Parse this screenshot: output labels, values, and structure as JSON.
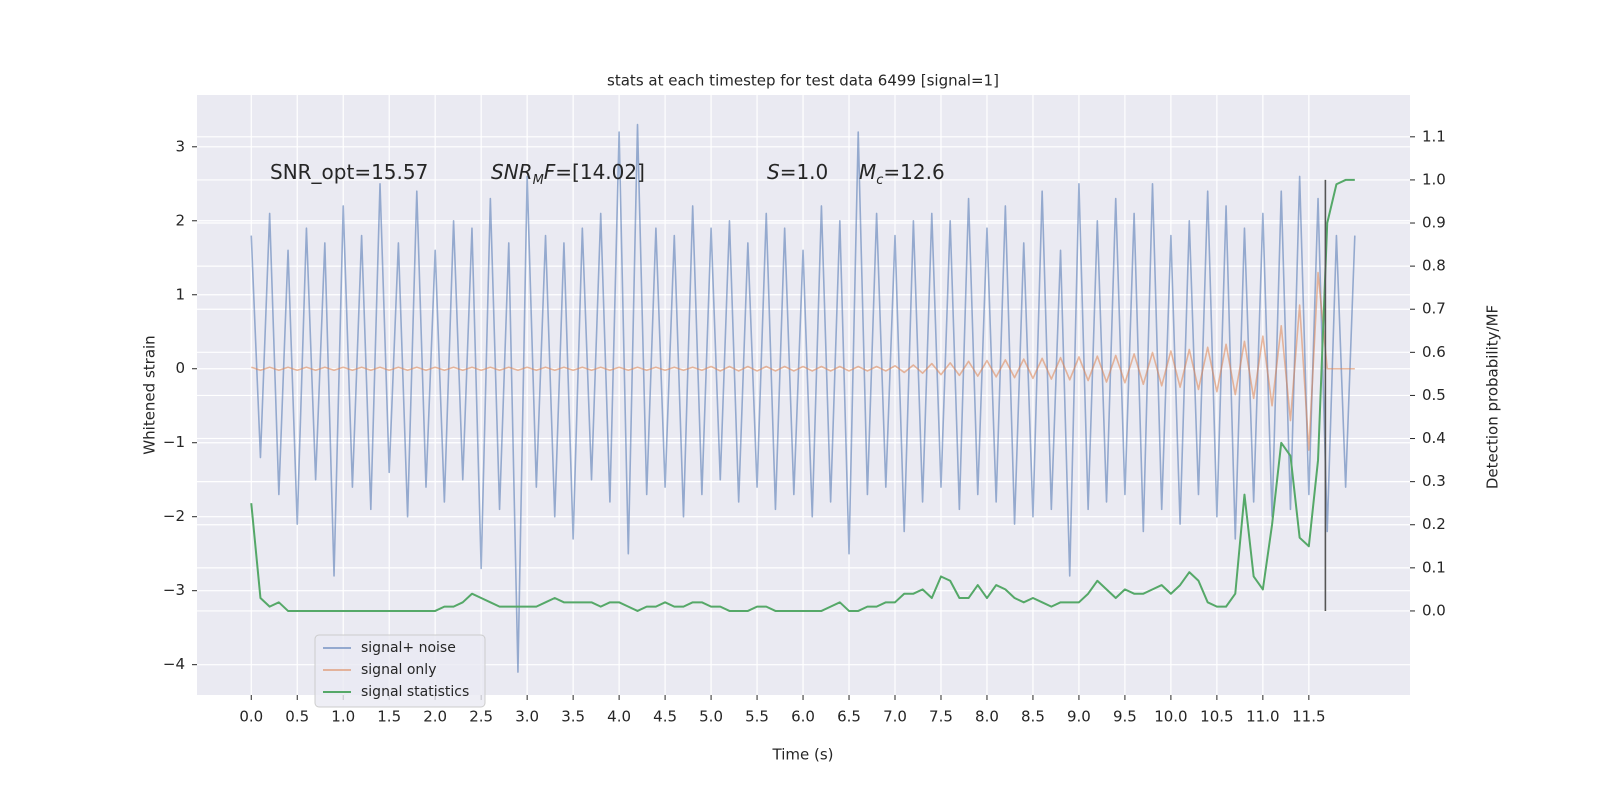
{
  "chart_data": {
    "type": "line",
    "title": "stats at each timestep for test data 6499 [signal=1]",
    "x_label": "Time (s)",
    "y_label": "Whitened strain",
    "y2_label": "Detection probability/MF",
    "grid": true,
    "legend": "lower left",
    "xlim": [
      -0.59,
      12.6
    ],
    "ylim": [
      -4.41,
      3.7
    ],
    "y2lim": [
      -0.195,
      1.197
    ],
    "xticks": [
      {
        "value": 0,
        "label": "0.0"
      },
      0.5,
      {
        "value": 1,
        "label": "1.0"
      },
      1.5,
      {
        "value": 2,
        "label": "2.0"
      },
      2.5,
      {
        "value": 3,
        "label": "3.0"
      },
      3.5,
      {
        "value": 4,
        "label": "4.0"
      },
      4.5,
      {
        "value": 5,
        "label": "5.0"
      },
      5.5,
      {
        "value": 6,
        "label": "6.0"
      },
      6.5,
      {
        "value": 7,
        "label": "7.0"
      },
      7.5,
      {
        "value": 8,
        "label": "8.0"
      },
      8.5,
      {
        "value": 9,
        "label": "9.0"
      },
      9.5,
      {
        "value": 10,
        "label": "10.0"
      },
      10.5,
      {
        "value": 11,
        "label": "11.0"
      },
      11.5
    ],
    "yticks": [
      {
        "value": -4,
        "label": "−4"
      },
      {
        "value": -3,
        "label": "−3"
      },
      {
        "value": -2,
        "label": "−2"
      },
      {
        "value": -1,
        "label": "−1"
      },
      0,
      1,
      2,
      3
    ],
    "y2ticks": [
      {
        "value": 0,
        "label": "0.0"
      },
      0.1,
      0.2,
      0.3,
      0.4,
      0.5,
      0.6,
      0.7,
      0.8,
      0.9,
      {
        "value": 1,
        "label": "1.0"
      },
      1.1
    ],
    "x": [
      0,
      0.1,
      0.2,
      0.3,
      0.4,
      0.5,
      0.6,
      0.7,
      0.8,
      0.9,
      1,
      1.1,
      1.2,
      1.3,
      1.4,
      1.5,
      1.6,
      1.7,
      1.8,
      1.9,
      2,
      2.1,
      2.2,
      2.3,
      2.4,
      2.5,
      2.6,
      2.7,
      2.8,
      2.9,
      3,
      3.1,
      3.2,
      3.3,
      3.4,
      3.5,
      3.6,
      3.7,
      3.8,
      3.9,
      4,
      4.1,
      4.2,
      4.3,
      4.4,
      4.5,
      4.6,
      4.7,
      4.8,
      4.9,
      5,
      5.1,
      5.2,
      5.3,
      5.4,
      5.5,
      5.6,
      5.7,
      5.8,
      5.9,
      6,
      6.1,
      6.2,
      6.3,
      6.4,
      6.5,
      6.6,
      6.7,
      6.8,
      6.9,
      7,
      7.1,
      7.2,
      7.3,
      7.4,
      7.5,
      7.6,
      7.7,
      7.8,
      7.9,
      8,
      8.1,
      8.2,
      8.3,
      8.4,
      8.5,
      8.6,
      8.7,
      8.8,
      8.9,
      9,
      9.1,
      9.2,
      9.3,
      9.4,
      9.5,
      9.6,
      9.7,
      9.8,
      9.9,
      10,
      10.1,
      10.2,
      10.3,
      10.4,
      10.5,
      10.6,
      10.7,
      10.8,
      10.9,
      11,
      11.1,
      11.2,
      11.3,
      11.4,
      11.5,
      11.6,
      11.7,
      11.8,
      11.9,
      12
    ],
    "series": [
      {
        "name": "signal+ noise",
        "color": "#4c72b0",
        "values": [
          1.8,
          -1.2,
          2.1,
          -1.7,
          1.6,
          -2.1,
          1.9,
          -1.5,
          1.7,
          -2.8,
          2.2,
          -1.6,
          1.8,
          -1.9,
          2.5,
          -1.4,
          1.7,
          -2.0,
          2.4,
          -1.6,
          1.6,
          -1.8,
          2.0,
          -1.5,
          1.9,
          -2.7,
          2.3,
          -1.9,
          1.7,
          -4.1,
          2.6,
          -1.6,
          1.8,
          -2.0,
          1.7,
          -2.3,
          1.9,
          -1.5,
          2.1,
          -1.8,
          3.2,
          -2.5,
          3.3,
          -1.7,
          1.9,
          -1.6,
          1.8,
          -2.0,
          2.2,
          -1.7,
          1.9,
          -1.5,
          2.0,
          -1.8,
          1.7,
          -1.6,
          2.1,
          -1.9,
          1.9,
          -1.7,
          1.6,
          -2.0,
          2.2,
          -1.8,
          2.0,
          -2.5,
          3.2,
          -1.7,
          2.1,
          -1.6,
          1.8,
          -2.2,
          2.0,
          -1.8,
          2.1,
          -1.6,
          2.0,
          -1.9,
          2.3,
          -1.7,
          1.9,
          -1.8,
          2.2,
          -2.1,
          1.7,
          -2.0,
          2.4,
          -1.9,
          1.6,
          -2.8,
          2.5,
          -1.9,
          2.0,
          -1.8,
          2.3,
          -1.7,
          2.1,
          -2.2,
          2.5,
          -1.9,
          1.8,
          -2.1,
          2.0,
          -1.7,
          2.4,
          -2.0,
          2.2,
          -2.3,
          1.9,
          -1.8,
          2.1,
          -2.0,
          2.4,
          -1.9,
          2.6,
          -1.7,
          2.3,
          -2.2,
          1.8,
          -1.6,
          1.8
        ]
      },
      {
        "name": "signal only",
        "color": "#dd8452",
        "values": [
          0.02,
          -0.02,
          0.02,
          -0.02,
          0.02,
          -0.02,
          0.02,
          -0.02,
          0.02,
          -0.02,
          0.02,
          -0.02,
          0.02,
          -0.02,
          0.02,
          -0.02,
          0.02,
          -0.02,
          0.02,
          -0.02,
          0.02,
          -0.02,
          0.02,
          -0.02,
          0.02,
          -0.02,
          0.02,
          -0.02,
          0.02,
          -0.02,
          0.02,
          -0.02,
          0.02,
          -0.02,
          0.02,
          -0.02,
          0.02,
          -0.02,
          0.02,
          -0.02,
          0.02,
          -0.02,
          0.02,
          -0.02,
          0.02,
          -0.02,
          0.02,
          -0.02,
          0.02,
          -0.02,
          0.03,
          -0.03,
          0.03,
          -0.03,
          0.03,
          -0.03,
          0.03,
          -0.03,
          0.03,
          -0.03,
          0.03,
          -0.03,
          0.03,
          -0.03,
          0.03,
          -0.03,
          0.03,
          -0.03,
          0.03,
          -0.03,
          0.04,
          -0.05,
          0.05,
          -0.06,
          0.07,
          -0.08,
          0.08,
          -0.09,
          0.1,
          -0.1,
          0.11,
          -0.11,
          0.12,
          -0.12,
          0.13,
          -0.13,
          0.14,
          -0.14,
          0.15,
          -0.15,
          0.16,
          -0.16,
          0.17,
          -0.18,
          0.18,
          -0.19,
          0.2,
          -0.21,
          0.22,
          -0.23,
          0.24,
          -0.25,
          0.26,
          -0.28,
          0.29,
          -0.31,
          0.33,
          -0.35,
          0.37,
          -0.4,
          0.44,
          -0.5,
          0.58,
          -0.7,
          0.86,
          -1.1,
          1.3,
          0,
          0,
          0,
          0
        ]
      },
      {
        "name": "signal statistics",
        "color": "#55a868",
        "axis": "y2",
        "values": [
          0.25,
          0.03,
          0.01,
          0.02,
          0.0,
          0.0,
          0.0,
          0.0,
          0.0,
          0.0,
          0.0,
          0.0,
          0.0,
          0.0,
          0.0,
          0.0,
          0.0,
          0.0,
          0.0,
          0.0,
          0.0,
          0.01,
          0.01,
          0.02,
          0.04,
          0.03,
          0.02,
          0.01,
          0.01,
          0.01,
          0.01,
          0.01,
          0.02,
          0.03,
          0.02,
          0.02,
          0.02,
          0.02,
          0.01,
          0.02,
          0.02,
          0.01,
          0.0,
          0.01,
          0.01,
          0.02,
          0.01,
          0.01,
          0.02,
          0.02,
          0.01,
          0.01,
          0.0,
          0.0,
          0.0,
          0.01,
          0.01,
          0.0,
          0.0,
          0.0,
          0.0,
          0.0,
          0.0,
          0.01,
          0.02,
          0.0,
          0.0,
          0.01,
          0.01,
          0.02,
          0.02,
          0.04,
          0.04,
          0.05,
          0.03,
          0.08,
          0.07,
          0.03,
          0.03,
          0.06,
          0.03,
          0.06,
          0.05,
          0.03,
          0.02,
          0.03,
          0.02,
          0.01,
          0.02,
          0.02,
          0.02,
          0.04,
          0.07,
          0.05,
          0.03,
          0.05,
          0.04,
          0.04,
          0.05,
          0.06,
          0.04,
          0.06,
          0.09,
          0.07,
          0.02,
          0.01,
          0.01,
          0.04,
          0.27,
          0.08,
          0.05,
          0.2,
          0.39,
          0.36,
          0.17,
          0.15,
          0.35,
          0.9,
          0.99,
          1.0,
          1.0
        ]
      }
    ],
    "vertical_line": {
      "x": 11.68,
      "from": 0,
      "to": 1.0,
      "color": "#555555"
    },
    "annotations": [
      [
        {
          "text": "SNR_opt=15.57"
        }
      ],
      [
        {
          "text": "SNR",
          "italic": true
        },
        {
          "text": "M",
          "italic": true,
          "sub": true
        },
        {
          "text": "F",
          "italic": true
        },
        {
          "text": "=[14.02]"
        }
      ],
      [
        {
          "text": "S",
          "italic": true
        },
        {
          "text": "=1.0"
        }
      ],
      [
        {
          "text": "M",
          "italic": true
        },
        {
          "text": "c",
          "italic": true,
          "sub": true
        },
        {
          "text": "=12.6"
        }
      ]
    ]
  }
}
